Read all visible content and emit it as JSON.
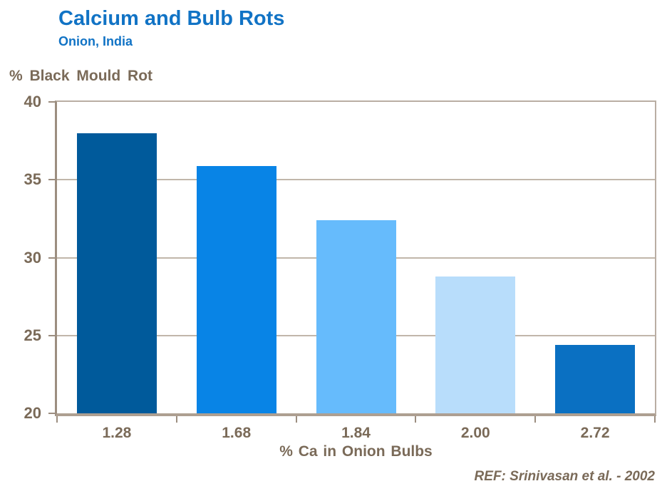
{
  "header": {
    "title": "Calcium and Bulb Rots",
    "subtitle": "Onion, India"
  },
  "chart_data": {
    "type": "bar",
    "title": "Calcium and Bulb Rots",
    "subtitle": "Onion, India",
    "categories": [
      "1.28",
      "1.68",
      "1.84",
      "2.00",
      "2.72"
    ],
    "values": [
      38.0,
      35.9,
      32.4,
      28.8,
      24.4
    ],
    "bar_colors": [
      "#005a9b",
      "#0884e6",
      "#66bbfc",
      "#b8ddfb",
      "#0a70c2"
    ],
    "xlabel": "% Ca in Onion Bulbs",
    "ylabel": "% Black Mould Rot",
    "ylim": [
      20,
      40
    ],
    "yticks": [
      40,
      35,
      30,
      25,
      20
    ],
    "grid": "horizontal gridlines at y ticks",
    "legend": "none"
  },
  "footer": {
    "reference": "REF: Srinivasan et al. - 2002"
  },
  "colors": {
    "title_blue": "#1173c5",
    "axis_text": "#7a6a58",
    "axis_line": "#9c8e80",
    "frame_line": "#b9aea3",
    "grid_line": "#c1b6aa",
    "baseline": "#ad9f91"
  }
}
